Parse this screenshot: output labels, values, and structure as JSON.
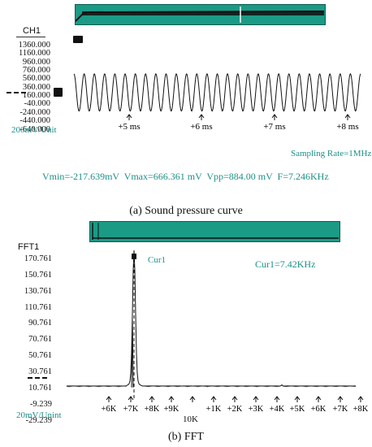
{
  "chart_data": [
    {
      "type": "line",
      "caption": "(a) Sound pressure curve",
      "channel": "CH1",
      "y_ticks": [
        "1360.000",
        "1160.000",
        "960.000",
        "760.000",
        "560.000",
        "360.000",
        "160.000",
        "-40.000",
        "-240.000",
        "-440.000",
        "-640.000"
      ],
      "x_ticks": [
        "+5 ms",
        "+6 ms",
        "+7 ms",
        "+8 ms"
      ],
      "scale_label": "200mV/Unit",
      "sampling_rate": "Sampling Rate=1MHz",
      "measurements": "Vmin=-217.639mV  Vmax=666.361 mV  Vpp=884.00 mV  F=7.246KHz",
      "vmin_mv": -217.639,
      "vmax_mv": 666.361,
      "frequency_khz": 7.246,
      "cycles_visible": 28
    },
    {
      "type": "line",
      "caption": "(b) FFT",
      "channel": "FFT1",
      "y_ticks": [
        "170.761",
        "150.761",
        "130.761",
        "110.761",
        "90.761",
        "70.761",
        "50.761",
        "30.761",
        "10.761",
        "-9.239",
        "-29.239"
      ],
      "x_ticks": [
        "+6K",
        "+7K",
        "+8K",
        "+9K",
        "",
        "+1K",
        "+2K",
        "+3K",
        "+4K",
        "+5K",
        "+6K",
        "+7K",
        "+8K"
      ],
      "x_center_label": "10K",
      "scale_label": "20mV/Unint",
      "cursor_label": "Cur1",
      "cursor_readout": "Cur1=7.42KHz",
      "peaks": [
        {
          "freq_khz": 7.42,
          "value": 170.761
        },
        {
          "freq_khz": 14.5,
          "value": 14.0
        }
      ],
      "baseline": 10.761
    }
  ],
  "colors": {
    "teal": "#1d8f87",
    "overview": "#1b9a86",
    "trace": "#111111"
  }
}
